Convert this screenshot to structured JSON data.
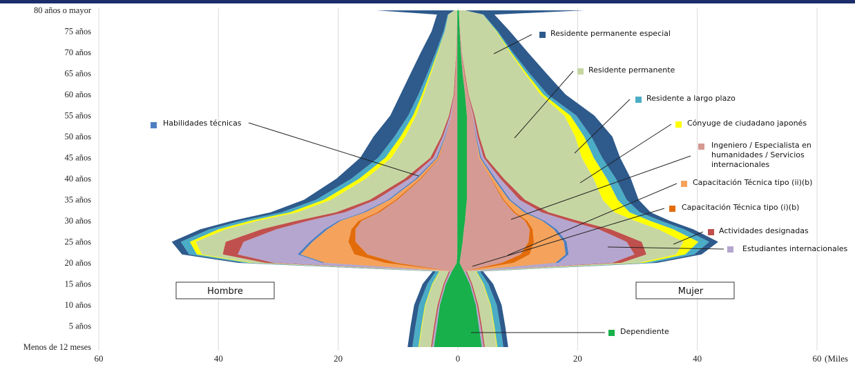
{
  "chart_data": {
    "type": "area",
    "orientation": "horizontal-pyramid",
    "unit": "(Miles",
    "x_ticks": [
      "60",
      "40",
      "20",
      "0",
      "20",
      "40",
      "60"
    ],
    "xlim": [
      -60,
      60
    ],
    "grid": "vertical",
    "age_labels": [
      "Menos de 12 meses",
      "5 años",
      "10 años",
      "15 años",
      "20 años",
      "25 años",
      "30 años",
      "35 años",
      "40 años",
      "45 años",
      "50 años",
      "55 años",
      "60 años",
      "65 años",
      "70 años",
      "75 años",
      "80 años o mayor"
    ],
    "age_label_values": [
      0,
      5,
      10,
      15,
      20,
      25,
      30,
      35,
      40,
      45,
      50,
      55,
      60,
      65,
      70,
      75,
      80
    ],
    "ages": [
      0,
      5,
      10,
      15,
      18,
      20,
      22,
      25,
      28,
      30,
      32,
      35,
      40,
      45,
      50,
      55,
      60,
      65,
      70,
      75,
      79,
      80
    ],
    "left_group": "Hombre",
    "right_group": "Mujer",
    "series": [
      {
        "name": "Dependiente",
        "color": "#18b04a",
        "male": [
          4,
          3.5,
          3,
          2,
          1,
          0.2,
          0.1,
          0.1,
          0.1,
          0.1,
          0.1,
          0.1,
          0.1,
          0.1,
          0.1,
          0.1,
          0.1,
          0.1,
          0.1,
          0.1,
          0.1,
          0.1
        ],
        "female": [
          4,
          3.5,
          3,
          2,
          1,
          0.3,
          0.5,
          0.8,
          1,
          1.2,
          1.3,
          1.5,
          1.5,
          1.5,
          1.5,
          1.5,
          1.2,
          0.8,
          0.5,
          0.3,
          0.2,
          0.2
        ]
      },
      {
        "name": "Ingeniero / Especialista en humanidades / Servicios internacionales",
        "color": "#d59a93",
        "male": [
          0,
          0,
          0,
          0,
          0,
          10,
          15,
          17,
          17,
          16,
          13,
          10,
          6,
          3,
          2,
          1,
          0.5,
          0.3,
          0.2,
          0.1,
          0,
          0
        ],
        "female": [
          0,
          0,
          0,
          0,
          0,
          7,
          10,
          11,
          11,
          10,
          8,
          6,
          4,
          2,
          1.5,
          1,
          0.5,
          0.3,
          0.2,
          0.1,
          0,
          0
        ]
      },
      {
        "name": "Capacitación Técnica tipo (i)(b)",
        "color": "#e36c0a",
        "male": [
          0,
          0,
          0,
          0,
          0,
          2,
          2.2,
          1.2,
          0.7,
          0.5,
          0.4,
          0.3,
          0.2,
          0.1,
          0,
          0,
          0,
          0,
          0,
          0,
          0,
          0
        ],
        "female": [
          0,
          0,
          0,
          0,
          0,
          2,
          1.5,
          0.9,
          0.5,
          0.4,
          0.3,
          0.2,
          0.1,
          0,
          0,
          0,
          0,
          0,
          0,
          0,
          0,
          0
        ]
      },
      {
        "name": "Capacitación Técnica tipo (ii)(b)",
        "color": "#f5a35c",
        "male": [
          0,
          0,
          0,
          0,
          0,
          10,
          9,
          6,
          4,
          3,
          2,
          1,
          0.5,
          0.2,
          0,
          0,
          0,
          0,
          0,
          0,
          0,
          0
        ],
        "female": [
          0,
          0,
          0,
          0,
          0,
          7,
          6,
          5,
          3.5,
          2.5,
          1.5,
          0.8,
          0.4,
          0.2,
          0,
          0,
          0,
          0,
          0,
          0,
          0,
          0
        ]
      },
      {
        "name": "Habilidades técnicas",
        "color": "#4f7fc1",
        "male": [
          0,
          0,
          0,
          0,
          0,
          0.5,
          0.5,
          0.5,
          0.5,
          0.4,
          0.4,
          0.3,
          0.3,
          0.2,
          0.1,
          0,
          0,
          0,
          0,
          0,
          0,
          0
        ],
        "female": [
          0,
          0,
          0,
          0,
          0,
          0.5,
          0.5,
          0.5,
          0.5,
          0.4,
          0.4,
          0.3,
          0.3,
          0.2,
          0.1,
          0,
          0,
          0,
          0,
          0,
          0,
          0
        ]
      },
      {
        "name": "Estudiantes internacionales",
        "color": "#b5a6cf",
        "male": [
          0.3,
          0.3,
          0.2,
          0.2,
          0.3,
          8,
          10,
          11,
          8,
          5,
          3,
          2,
          1,
          0.5,
          0.3,
          0.2,
          0,
          0,
          0,
          0,
          0,
          0
        ],
        "female": [
          0.3,
          0.3,
          0.2,
          0.2,
          0.3,
          9,
          11,
          10,
          7,
          4,
          2.5,
          1.5,
          0.8,
          0.4,
          0.2,
          0.1,
          0,
          0,
          0,
          0,
          0,
          0
        ]
      },
      {
        "name": "Actividades designadas",
        "color": "#c0504d",
        "male": [
          0.2,
          0.2,
          0.2,
          0.2,
          0.2,
          1.5,
          2.5,
          3,
          2.5,
          2,
          1.5,
          1,
          0.8,
          0.5,
          0.3,
          0.2,
          0.1,
          0.1,
          0,
          0,
          0,
          0
        ],
        "female": [
          0.2,
          0.2,
          0.2,
          0.2,
          0.2,
          1.5,
          2,
          2.5,
          2,
          1.6,
          1.2,
          0.9,
          0.6,
          0.4,
          0.3,
          0.2,
          0.1,
          0.1,
          0,
          0,
          0,
          0
        ]
      },
      {
        "name": "Residente permanente",
        "color": "#c6d6a2",
        "male": [
          2,
          2,
          2,
          1.8,
          1.5,
          2,
          3.5,
          5,
          6,
          6.5,
          6.5,
          6.5,
          6.5,
          6.5,
          6,
          5.5,
          5,
          4,
          3,
          2,
          1.5,
          0.5
        ],
        "female": [
          2,
          2,
          2,
          1.8,
          1.5,
          3,
          5,
          7,
          8,
          9.5,
          11,
          13,
          15,
          16,
          16,
          15,
          12,
          10,
          8,
          6,
          4,
          1
        ]
      },
      {
        "name": "Cónyuge de ciudadano japonés",
        "color": "#ffff00",
        "male": [
          0.1,
          0.1,
          0.1,
          0.1,
          0.1,
          0.5,
          0.8,
          1,
          1.2,
          1.2,
          1.2,
          1.2,
          1.1,
          1,
          0.8,
          0.5,
          0.3,
          0.2,
          0.1,
          0,
          0,
          0
        ],
        "female": [
          0.1,
          0.1,
          0.1,
          0.1,
          0.1,
          0.8,
          1.5,
          2.5,
          2.5,
          2.5,
          2.5,
          2.5,
          2.2,
          2,
          1.5,
          1,
          0.5,
          0.3,
          0.2,
          0.1,
          0,
          0
        ]
      },
      {
        "name": "Residente a largo plazo",
        "color": "#4bacc6",
        "male": [
          1,
          1,
          1,
          0.8,
          0.6,
          1,
          1.3,
          1.5,
          1.5,
          1.5,
          1.4,
          1.3,
          1.3,
          1.2,
          1,
          0.8,
          0.6,
          0.4,
          0.3,
          0.2,
          0.1,
          0
        ],
        "female": [
          1,
          1,
          1,
          0.8,
          0.6,
          1.2,
          1.5,
          1.8,
          1.8,
          1.8,
          1.7,
          1.5,
          1.5,
          1.4,
          1.2,
          1,
          0.7,
          0.5,
          0.3,
          0.2,
          0.1,
          0
        ]
      },
      {
        "name": "Residente permanente especial",
        "color": "#2e5a8c",
        "male": [
          0.8,
          0.8,
          0.8,
          0.8,
          0.5,
          1,
          1.2,
          1.5,
          1.5,
          1.5,
          1.8,
          2,
          2.5,
          3,
          3.5,
          3,
          3,
          2.8,
          2.5,
          2,
          1.8,
          13
        ],
        "female": [
          0.8,
          0.8,
          0.8,
          0.8,
          0.5,
          1,
          1.2,
          1.5,
          1.5,
          1.5,
          1.8,
          2,
          2.5,
          3,
          3.5,
          3,
          3,
          2.8,
          2.5,
          2,
          1.8,
          20
        ]
      }
    ],
    "legend": [
      {
        "label": "Habilidades técnicas",
        "color": "#4f7fc1"
      },
      {
        "label": "Residente permanente especial",
        "color": "#2e5a8c"
      },
      {
        "label": "Residente permanente",
        "color": "#c6d6a2"
      },
      {
        "label": "Residente a largo plazo",
        "color": "#4bacc6"
      },
      {
        "label": "Cónyuge de ciudadano japonés",
        "color": "#ffff00"
      },
      {
        "label": "Ingeniero / Especialista en humanidades / Servicios internacionales",
        "color": "#d59a93"
      },
      {
        "label": "Capacitación Técnica tipo (ii)(b)",
        "color": "#f5a35c"
      },
      {
        "label": "Capacitación Técnica tipo (i)(b)",
        "color": "#e36c0a"
      },
      {
        "label": "Actividades designadas",
        "color": "#c0504d"
      },
      {
        "label": "Estudiantes internacionales",
        "color": "#b5a6cf"
      },
      {
        "label": "Dependiente",
        "color": "#18b04a"
      }
    ]
  }
}
